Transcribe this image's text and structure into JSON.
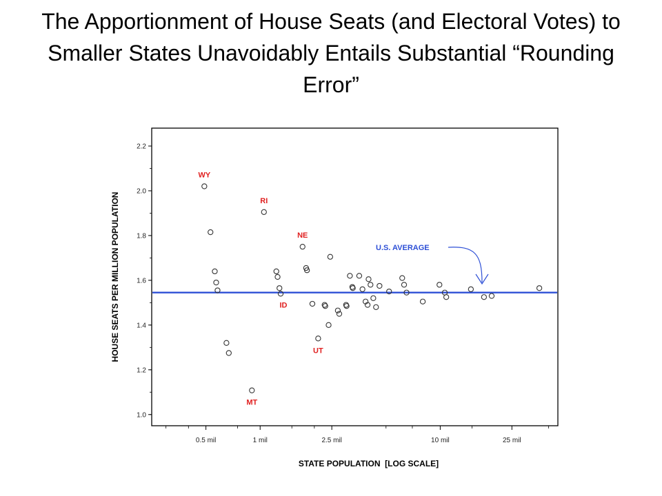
{
  "slide": {
    "title": "The Apportionment of House Seats (and Electoral Votes) to Smaller States Unavoidably Entails Substantial “Rounding Error”"
  },
  "colors": {
    "label": "#e02020",
    "average": "#2d4fd6",
    "point": "#333333",
    "frame": "#000000"
  },
  "chart_data": {
    "type": "scatter",
    "xlabel": "STATE POPULATION  [LOG SCALE]",
    "ylabel": "HOUSE SEATS PER MILLION POPULATION",
    "x_scale": "log",
    "xlim": [
      0.25,
      45
    ],
    "ylim": [
      0.95,
      2.28
    ],
    "x_ticks": [
      {
        "value": 0.5,
        "label": "0.5 mil"
      },
      {
        "value": 1,
        "label": "1 mil"
      },
      {
        "value": 2.5,
        "label": "2.5 mil"
      },
      {
        "value": 10,
        "label": "10 mil"
      },
      {
        "value": 25,
        "label": "25 mil"
      }
    ],
    "y_ticks": [
      1.0,
      1.2,
      1.4,
      1.6,
      1.8,
      2.0,
      2.2
    ],
    "y_tick_labels": [
      "1.0",
      "1.2",
      "1.4",
      "1.6",
      "1.8",
      "2.0",
      "2.2"
    ],
    "reference_line": {
      "y": 1.545,
      "label": "U.S. AVERAGE"
    },
    "points": [
      {
        "x": 0.49,
        "y": 2.02,
        "label": "WY"
      },
      {
        "x": 0.53,
        "y": 1.815
      },
      {
        "x": 0.56,
        "y": 1.64
      },
      {
        "x": 0.57,
        "y": 1.59
      },
      {
        "x": 0.58,
        "y": 1.555
      },
      {
        "x": 0.65,
        "y": 1.32
      },
      {
        "x": 0.67,
        "y": 1.275
      },
      {
        "x": 0.9,
        "y": 1.108,
        "label": "MT"
      },
      {
        "x": 1.05,
        "y": 1.905,
        "label": "RI"
      },
      {
        "x": 1.23,
        "y": 1.64
      },
      {
        "x": 1.25,
        "y": 1.615
      },
      {
        "x": 1.28,
        "y": 1.565
      },
      {
        "x": 1.3,
        "y": 1.54,
        "label": "ID"
      },
      {
        "x": 1.72,
        "y": 1.75,
        "label": "NE"
      },
      {
        "x": 1.8,
        "y": 1.655
      },
      {
        "x": 1.82,
        "y": 1.645
      },
      {
        "x": 1.95,
        "y": 1.495
      },
      {
        "x": 2.1,
        "y": 1.34,
        "label": "UT"
      },
      {
        "x": 2.28,
        "y": 1.49
      },
      {
        "x": 2.3,
        "y": 1.485
      },
      {
        "x": 2.4,
        "y": 1.4
      },
      {
        "x": 2.45,
        "y": 1.705
      },
      {
        "x": 2.7,
        "y": 1.465
      },
      {
        "x": 2.75,
        "y": 1.45
      },
      {
        "x": 3.0,
        "y": 1.49
      },
      {
        "x": 3.02,
        "y": 1.485
      },
      {
        "x": 3.15,
        "y": 1.62
      },
      {
        "x": 3.25,
        "y": 1.57
      },
      {
        "x": 3.27,
        "y": 1.565
      },
      {
        "x": 3.55,
        "y": 1.62
      },
      {
        "x": 3.7,
        "y": 1.56
      },
      {
        "x": 3.85,
        "y": 1.505
      },
      {
        "x": 3.95,
        "y": 1.49
      },
      {
        "x": 4.0,
        "y": 1.605
      },
      {
        "x": 4.1,
        "y": 1.58
      },
      {
        "x": 4.25,
        "y": 1.52
      },
      {
        "x": 4.4,
        "y": 1.48
      },
      {
        "x": 4.6,
        "y": 1.575
      },
      {
        "x": 5.2,
        "y": 1.55
      },
      {
        "x": 6.15,
        "y": 1.61
      },
      {
        "x": 6.3,
        "y": 1.58
      },
      {
        "x": 6.5,
        "y": 1.545
      },
      {
        "x": 8.0,
        "y": 1.505
      },
      {
        "x": 9.9,
        "y": 1.58
      },
      {
        "x": 10.6,
        "y": 1.545
      },
      {
        "x": 10.8,
        "y": 1.525
      },
      {
        "x": 14.8,
        "y": 1.56
      },
      {
        "x": 17.5,
        "y": 1.525
      },
      {
        "x": 19.3,
        "y": 1.53
      },
      {
        "x": 35.5,
        "y": 1.565
      }
    ]
  }
}
